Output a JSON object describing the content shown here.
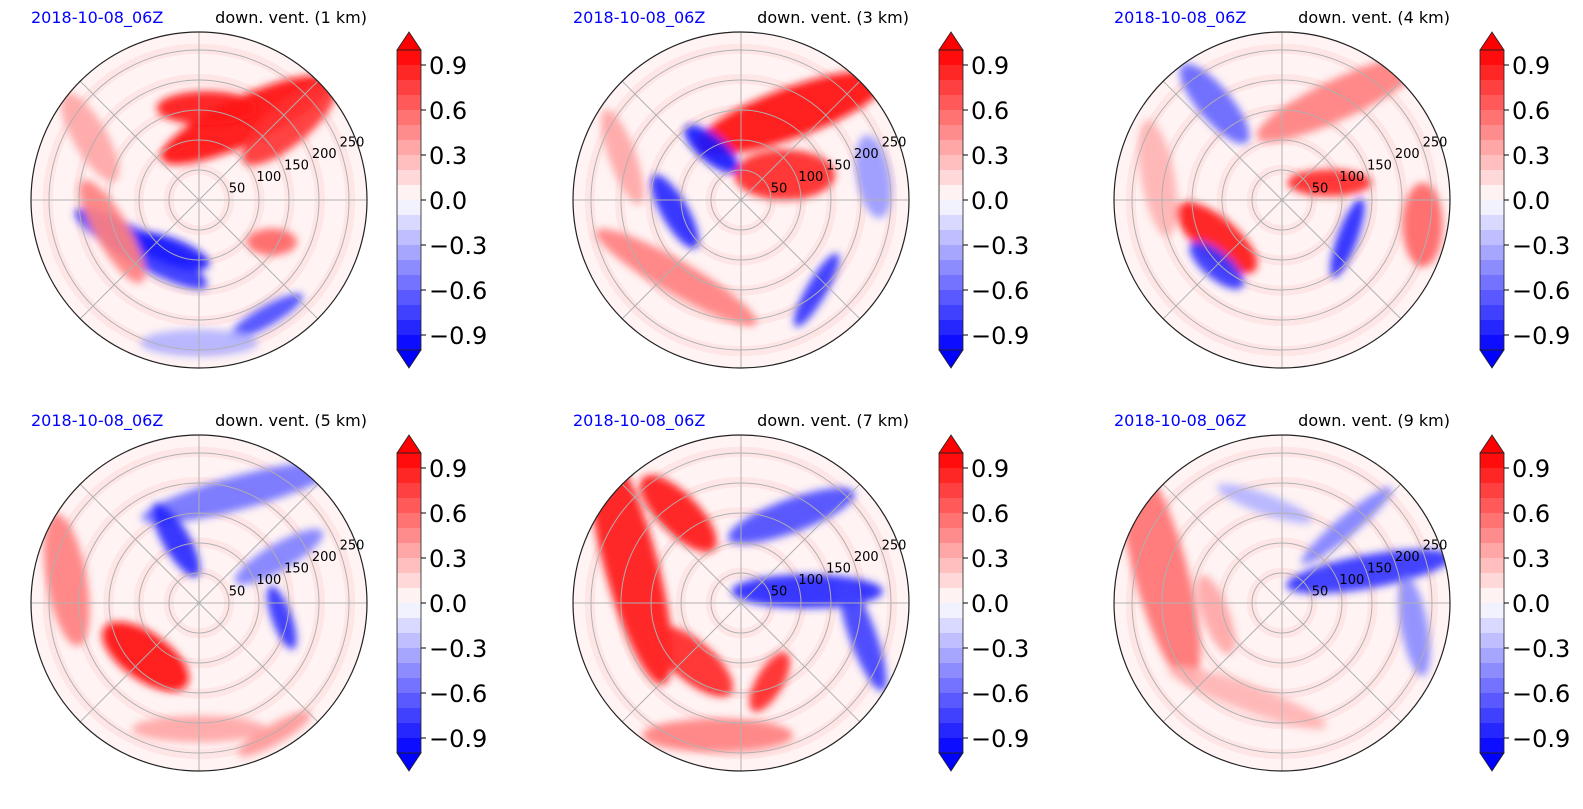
{
  "chart_data": {
    "type": "heatmap",
    "projection": "polar",
    "colormap": "bwr",
    "colors": {
      "negative": "#0000ff",
      "zero": "#ffffff",
      "positive": "#ff0000"
    },
    "grid": true,
    "radial_ticks": [
      "50",
      "100",
      "150",
      "200",
      "250"
    ],
    "radial_tick_values": [
      50,
      100,
      150,
      200,
      250
    ],
    "r_max": 280,
    "colorbar": {
      "ticks": [
        "0.9",
        "0.6",
        "0.3",
        "0.0",
        "−0.3",
        "−0.6",
        "−0.9"
      ],
      "tick_values": [
        0.9,
        0.6,
        0.3,
        0.0,
        -0.3,
        -0.6,
        -0.9
      ],
      "vmin": -1.0,
      "vmax": 1.0,
      "levels": 20,
      "extend": "both"
    },
    "panels": [
      {
        "time": "2018-10-08_06Z",
        "title": "down. vent. (1 km)",
        "features": [
          {
            "type": "blob",
            "angle": 60,
            "r": 0.55,
            "w": 0.55,
            "h": 0.14,
            "rot": -25,
            "v": 0.95
          },
          {
            "type": "blob",
            "angle": 85,
            "r": 0.55,
            "w": 0.3,
            "h": 0.1,
            "rot": 0,
            "v": 0.9
          },
          {
            "type": "blob",
            "angle": 40,
            "r": 0.7,
            "w": 0.35,
            "h": 0.12,
            "rot": -40,
            "v": 0.8
          },
          {
            "type": "blob",
            "angle": 220,
            "r": 0.45,
            "w": 0.45,
            "h": 0.1,
            "rot": 30,
            "v": -0.8
          },
          {
            "type": "blob",
            "angle": 240,
            "r": 0.35,
            "w": 0.25,
            "h": 0.08,
            "rot": 20,
            "v": -0.9
          },
          {
            "type": "blob",
            "angle": 200,
            "r": 0.55,
            "w": 0.35,
            "h": 0.1,
            "rot": 60,
            "v": 0.5
          },
          {
            "type": "blob",
            "angle": 300,
            "r": 0.8,
            "w": 0.25,
            "h": 0.06,
            "rot": -30,
            "v": -0.7
          },
          {
            "type": "blob",
            "angle": 150,
            "r": 0.75,
            "w": 0.3,
            "h": 0.1,
            "rot": 60,
            "v": 0.35
          },
          {
            "type": "blob",
            "angle": 330,
            "r": 0.5,
            "w": 0.15,
            "h": 0.08,
            "rot": 0,
            "v": 0.6
          },
          {
            "type": "blob",
            "angle": 270,
            "r": 0.85,
            "w": 0.35,
            "h": 0.08,
            "rot": 0,
            "v": -0.3
          }
        ]
      },
      {
        "time": "2018-10-08_06Z",
        "title": "down. vent. (3 km)",
        "features": [
          {
            "type": "blob",
            "angle": 60,
            "r": 0.6,
            "w": 0.6,
            "h": 0.15,
            "rot": -20,
            "v": 0.95
          },
          {
            "type": "blob",
            "angle": 30,
            "r": 0.3,
            "w": 0.3,
            "h": 0.15,
            "rot": 0,
            "v": 0.85
          },
          {
            "type": "blob",
            "angle": 120,
            "r": 0.35,
            "w": 0.2,
            "h": 0.08,
            "rot": 40,
            "v": -0.9
          },
          {
            "type": "blob",
            "angle": 190,
            "r": 0.4,
            "w": 0.25,
            "h": 0.08,
            "rot": 60,
            "v": -0.85
          },
          {
            "type": "blob",
            "angle": 230,
            "r": 0.6,
            "w": 0.55,
            "h": 0.1,
            "rot": 30,
            "v": 0.5
          },
          {
            "type": "blob",
            "angle": 310,
            "r": 0.7,
            "w": 0.25,
            "h": 0.06,
            "rot": -60,
            "v": -0.8
          },
          {
            "type": "blob",
            "angle": 160,
            "r": 0.75,
            "w": 0.3,
            "h": 0.08,
            "rot": 70,
            "v": 0.35
          },
          {
            "type": "blob",
            "angle": 10,
            "r": 0.8,
            "w": 0.25,
            "h": 0.1,
            "rot": 80,
            "v": -0.4
          }
        ]
      },
      {
        "time": "2018-10-08_06Z",
        "title": "down. vent. (4 km)",
        "features": [
          {
            "type": "blob",
            "angle": 125,
            "r": 0.7,
            "w": 0.3,
            "h": 0.1,
            "rot": 50,
            "v": -0.6
          },
          {
            "type": "blob",
            "angle": 60,
            "r": 0.7,
            "w": 0.55,
            "h": 0.12,
            "rot": -25,
            "v": 0.5
          },
          {
            "type": "blob",
            "angle": 210,
            "r": 0.45,
            "w": 0.3,
            "h": 0.12,
            "rot": 40,
            "v": 0.9
          },
          {
            "type": "blob",
            "angle": 225,
            "r": 0.55,
            "w": 0.2,
            "h": 0.08,
            "rot": 40,
            "v": -0.8
          },
          {
            "type": "blob",
            "angle": 20,
            "r": 0.3,
            "w": 0.25,
            "h": 0.08,
            "rot": 0,
            "v": 0.85
          },
          {
            "type": "blob",
            "angle": 330,
            "r": 0.45,
            "w": 0.25,
            "h": 0.06,
            "rot": -70,
            "v": -0.85
          },
          {
            "type": "blob",
            "angle": 170,
            "r": 0.75,
            "w": 0.35,
            "h": 0.1,
            "rot": 80,
            "v": 0.3
          },
          {
            "type": "blob",
            "angle": 350,
            "r": 0.85,
            "w": 0.25,
            "h": 0.12,
            "rot": 90,
            "v": 0.6
          }
        ]
      },
      {
        "time": "2018-10-08_06Z",
        "title": "down. vent. (5 km)",
        "features": [
          {
            "type": "blob",
            "angle": 70,
            "r": 0.7,
            "w": 0.6,
            "h": 0.1,
            "rot": -15,
            "v": -0.55
          },
          {
            "type": "blob",
            "angle": 110,
            "r": 0.4,
            "w": 0.25,
            "h": 0.08,
            "rot": 60,
            "v": -0.85
          },
          {
            "type": "blob",
            "angle": 225,
            "r": 0.45,
            "w": 0.3,
            "h": 0.14,
            "rot": 35,
            "v": 0.95
          },
          {
            "type": "blob",
            "angle": 170,
            "r": 0.8,
            "w": 0.4,
            "h": 0.12,
            "rot": 80,
            "v": 0.5
          },
          {
            "type": "blob",
            "angle": 350,
            "r": 0.5,
            "w": 0.2,
            "h": 0.06,
            "rot": 70,
            "v": -0.8
          },
          {
            "type": "blob",
            "angle": 30,
            "r": 0.55,
            "w": 0.3,
            "h": 0.08,
            "rot": -30,
            "v": -0.5
          },
          {
            "type": "blob",
            "angle": 270,
            "r": 0.75,
            "w": 0.4,
            "h": 0.08,
            "rot": 0,
            "v": 0.35
          },
          {
            "type": "blob",
            "angle": 300,
            "r": 0.9,
            "w": 0.25,
            "h": 0.06,
            "rot": -30,
            "v": 0.4
          }
        ]
      },
      {
        "time": "2018-10-08_06Z",
        "title": "down. vent. (7 km)",
        "features": [
          {
            "type": "blob",
            "angle": 160,
            "r": 0.7,
            "w": 0.75,
            "h": 0.16,
            "rot": 75,
            "v": 0.9
          },
          {
            "type": "blob",
            "angle": 125,
            "r": 0.65,
            "w": 0.3,
            "h": 0.12,
            "rot": 45,
            "v": 0.9
          },
          {
            "type": "blob",
            "angle": 60,
            "r": 0.6,
            "w": 0.4,
            "h": 0.1,
            "rot": -20,
            "v": -0.7
          },
          {
            "type": "blob",
            "angle": 10,
            "r": 0.4,
            "w": 0.45,
            "h": 0.1,
            "rot": 0,
            "v": -0.85
          },
          {
            "type": "blob",
            "angle": 345,
            "r": 0.75,
            "w": 0.35,
            "h": 0.08,
            "rot": 70,
            "v": -0.75
          },
          {
            "type": "blob",
            "angle": 230,
            "r": 0.45,
            "w": 0.3,
            "h": 0.12,
            "rot": 40,
            "v": 0.85
          },
          {
            "type": "blob",
            "angle": 290,
            "r": 0.5,
            "w": 0.2,
            "h": 0.08,
            "rot": -60,
            "v": 0.85
          },
          {
            "type": "blob",
            "angle": 260,
            "r": 0.8,
            "w": 0.45,
            "h": 0.1,
            "rot": 0,
            "v": 0.5
          }
        ]
      },
      {
        "time": "2018-10-08_06Z",
        "title": "down. vent. (9 km)",
        "features": [
          {
            "type": "blob",
            "angle": 165,
            "r": 0.75,
            "w": 0.7,
            "h": 0.16,
            "rot": 75,
            "v": 0.55
          },
          {
            "type": "blob",
            "angle": 20,
            "r": 0.55,
            "w": 0.5,
            "h": 0.1,
            "rot": -10,
            "v": -0.8
          },
          {
            "type": "blob",
            "angle": 50,
            "r": 0.6,
            "w": 0.35,
            "h": 0.06,
            "rot": -40,
            "v": -0.5
          },
          {
            "type": "blob",
            "angle": 350,
            "r": 0.8,
            "w": 0.3,
            "h": 0.08,
            "rot": 80,
            "v": -0.45
          },
          {
            "type": "blob",
            "angle": 250,
            "r": 0.6,
            "w": 0.5,
            "h": 0.08,
            "rot": 20,
            "v": 0.3
          },
          {
            "type": "blob",
            "angle": 190,
            "r": 0.4,
            "w": 0.25,
            "h": 0.08,
            "rot": 70,
            "v": 0.35
          },
          {
            "type": "blob",
            "angle": 100,
            "r": 0.6,
            "w": 0.3,
            "h": 0.06,
            "rot": 20,
            "v": -0.3
          }
        ]
      }
    ]
  }
}
